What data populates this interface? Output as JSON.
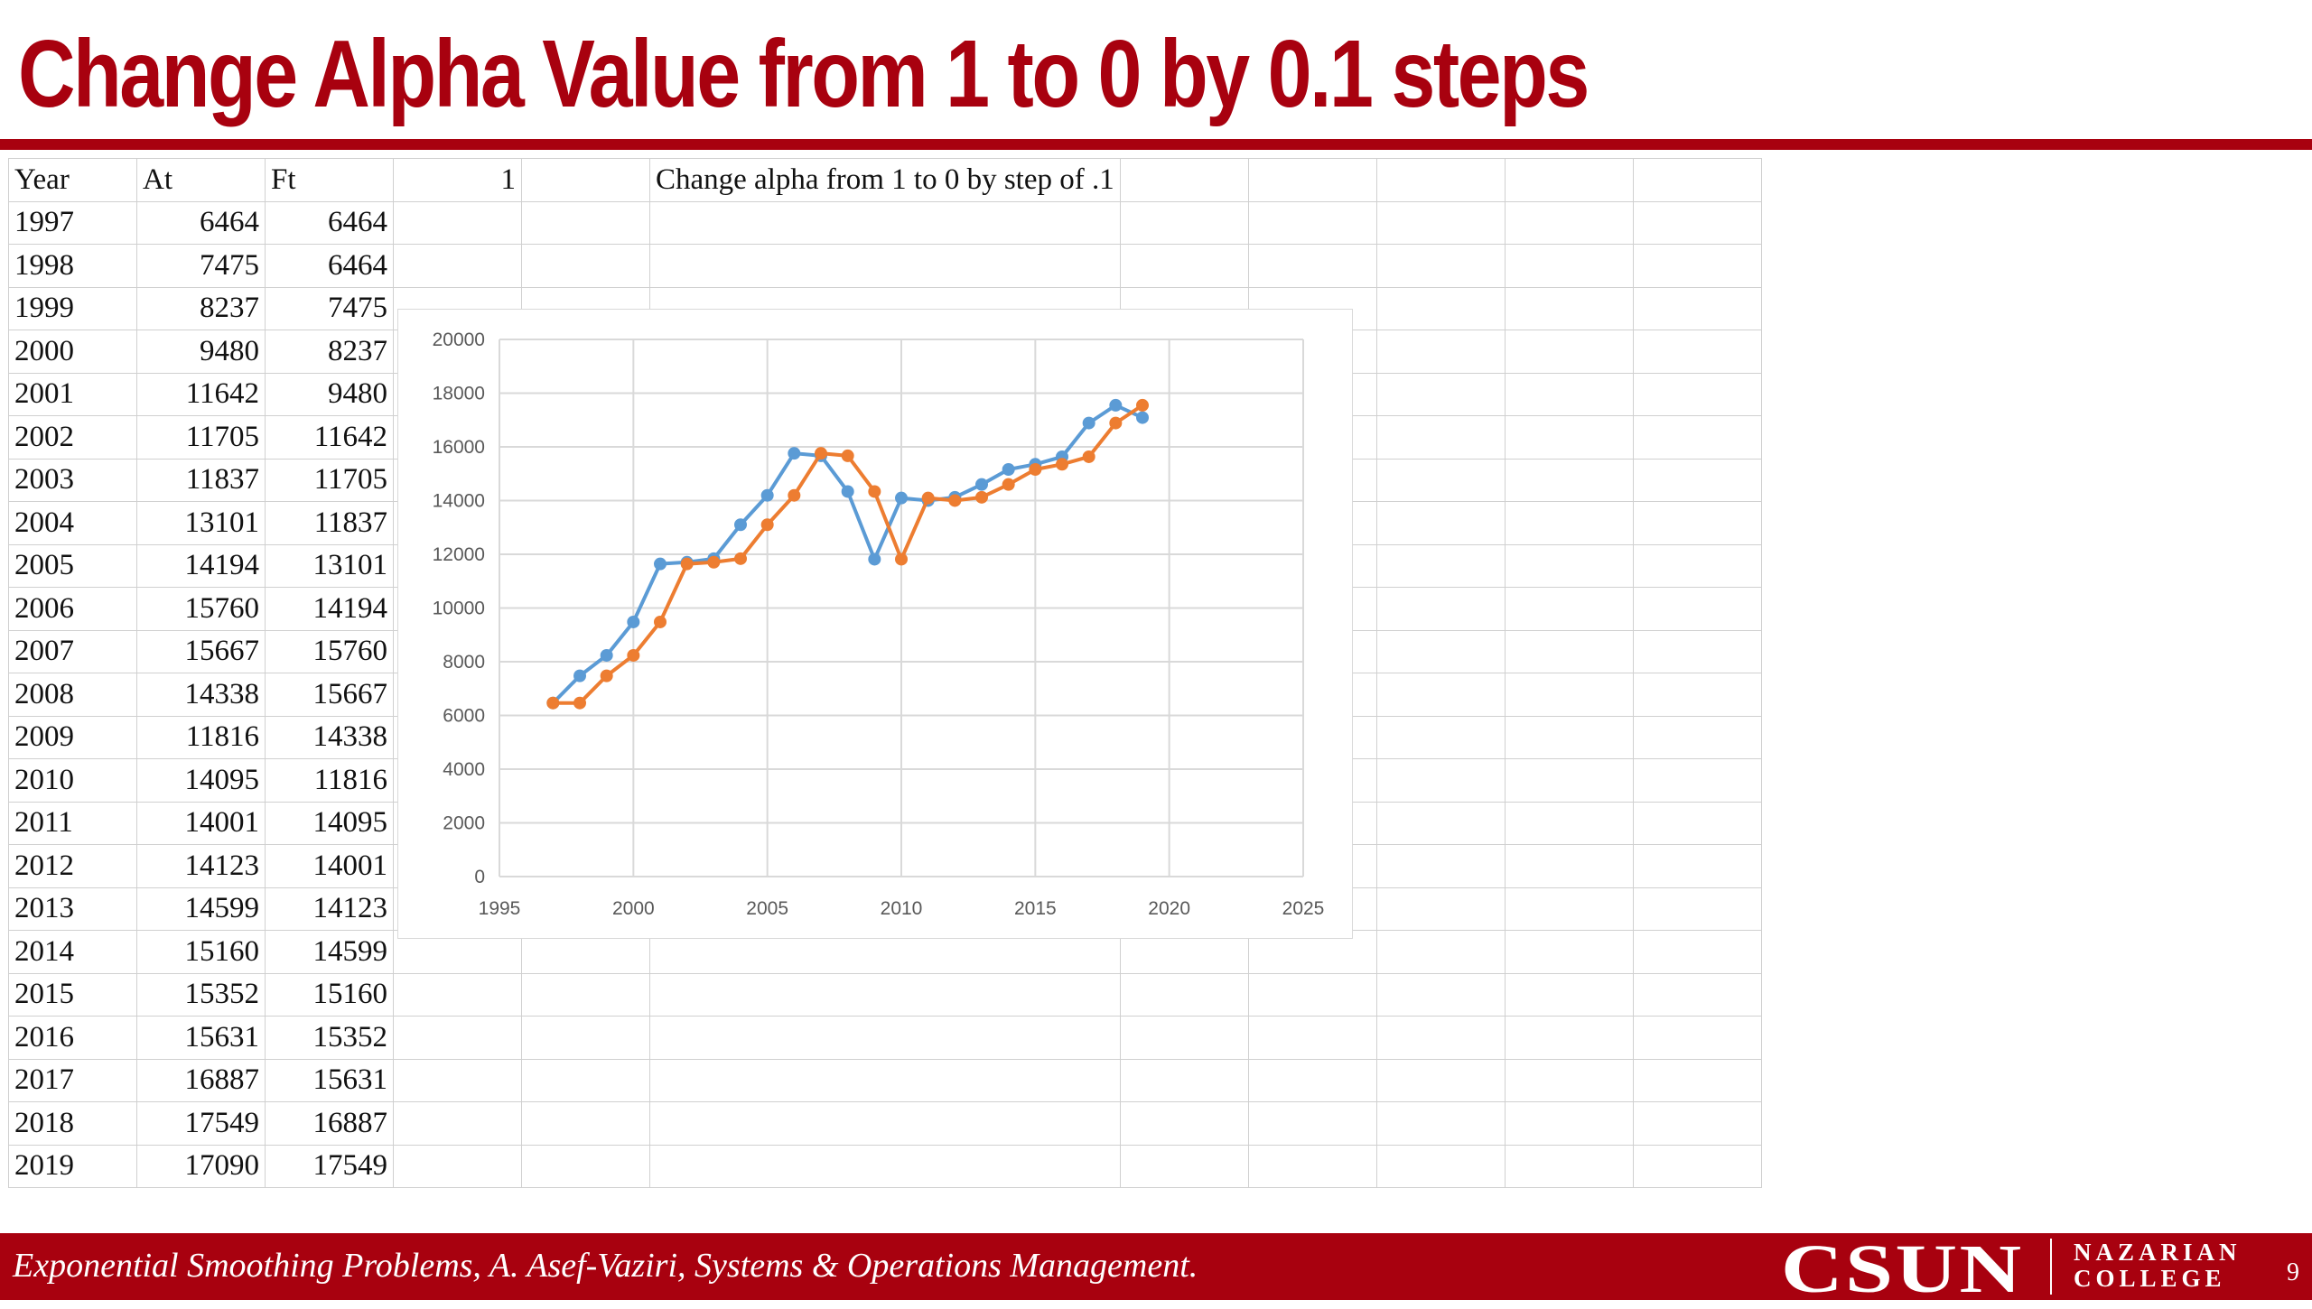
{
  "slide": {
    "title": "Change Alpha Value from 1 to 0 by 0.1 steps",
    "footer_text": "Exponential Smoothing Problems, A. Asef-Vaziri, Systems & Operations Management.",
    "page_number": "9",
    "logo": {
      "main": "CSUN",
      "line1": "NAZARIAN",
      "line2": "COLLEGE"
    },
    "brand_color": "#a8010f"
  },
  "sheet": {
    "headers": [
      "Year",
      "At",
      "Ft",
      "1",
      "",
      "Change alpha from 1 to 0 by step of .1",
      "",
      "",
      "",
      "",
      ""
    ],
    "rows": [
      [
        "1997",
        "6464",
        "6464"
      ],
      [
        "1998",
        "7475",
        "6464"
      ],
      [
        "1999",
        "8237",
        "7475"
      ],
      [
        "2000",
        "9480",
        "8237"
      ],
      [
        "2001",
        "11642",
        "9480"
      ],
      [
        "2002",
        "11705",
        "11642"
      ],
      [
        "2003",
        "11837",
        "11705"
      ],
      [
        "2004",
        "13101",
        "11837"
      ],
      [
        "2005",
        "14194",
        "13101"
      ],
      [
        "2006",
        "15760",
        "14194"
      ],
      [
        "2007",
        "15667",
        "15760"
      ],
      [
        "2008",
        "14338",
        "15667"
      ],
      [
        "2009",
        "11816",
        "14338"
      ],
      [
        "2010",
        "14095",
        "11816"
      ],
      [
        "2011",
        "14001",
        "14095"
      ],
      [
        "2012",
        "14123",
        "14001"
      ],
      [
        "2013",
        "14599",
        "14123"
      ],
      [
        "2014",
        "15160",
        "14599"
      ],
      [
        "2015",
        "15352",
        "15160"
      ],
      [
        "2016",
        "15631",
        "15352"
      ],
      [
        "2017",
        "16887",
        "15631"
      ],
      [
        "2018",
        "17549",
        "16887"
      ],
      [
        "2019",
        "17090",
        "17549"
      ]
    ]
  },
  "chart_data": {
    "type": "scatter",
    "x": [
      1997,
      1998,
      1999,
      2000,
      2001,
      2002,
      2003,
      2004,
      2005,
      2006,
      2007,
      2008,
      2009,
      2010,
      2011,
      2012,
      2013,
      2014,
      2015,
      2016,
      2017,
      2018,
      2019
    ],
    "series": [
      {
        "color": "#5b9bd5",
        "values": [
          6464,
          7475,
          8237,
          9480,
          11642,
          11705,
          11837,
          13101,
          14194,
          15760,
          15667,
          14338,
          11816,
          14095,
          14001,
          14123,
          14599,
          15160,
          15352,
          15631,
          16887,
          17549,
          17090
        ]
      },
      {
        "color": "#ed7d31",
        "values": [
          6464,
          6464,
          7475,
          8237,
          9480,
          11642,
          11705,
          11837,
          13101,
          14194,
          15760,
          15667,
          14338,
          11816,
          14095,
          14001,
          14123,
          14599,
          15160,
          15352,
          15631,
          16887,
          17549
        ]
      }
    ],
    "xlim": [
      1995,
      2025
    ],
    "ylim": [
      0,
      20000
    ],
    "xticks": [
      "1995",
      "2000",
      "2005",
      "2010",
      "2015",
      "2020",
      "2025"
    ],
    "yticks": [
      "0",
      "2000",
      "4000",
      "6000",
      "8000",
      "10000",
      "12000",
      "14000",
      "16000",
      "18000",
      "20000"
    ],
    "grid": true,
    "legend": "none"
  }
}
